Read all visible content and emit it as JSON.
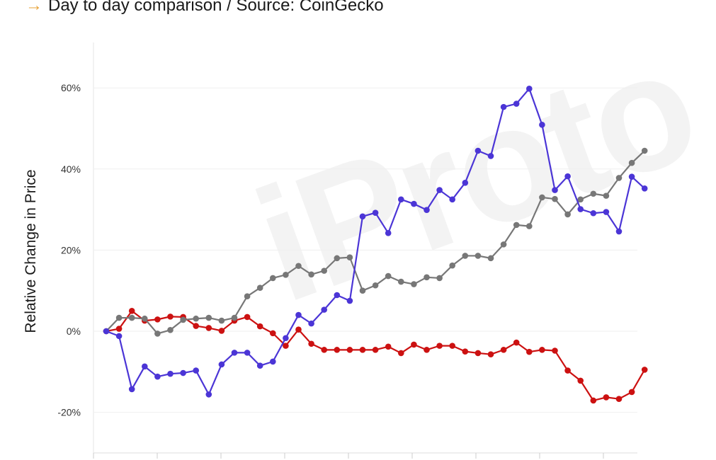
{
  "header": {
    "arrow": "→",
    "subtitle": "Day to day comparison / Source: CoinGecko"
  },
  "watermark": "iProto",
  "chart_data": {
    "type": "line",
    "title": "",
    "subtitle": "Day to day comparison / Source: CoinGecko",
    "xlabel": "",
    "ylabel": "Relative Change in Price",
    "ylim": [
      -30,
      70
    ],
    "yticks": [
      -20,
      0,
      20,
      40,
      60
    ],
    "ytick_labels": [
      "-20%",
      "0%",
      "20%",
      "40%",
      "60%"
    ],
    "grid": true,
    "legend": "none",
    "x": [
      0,
      1,
      2,
      3,
      4,
      5,
      6,
      7,
      8,
      9,
      10,
      11,
      12,
      13,
      14,
      15,
      16,
      17,
      18,
      19,
      20,
      21,
      22,
      23,
      24,
      25,
      26,
      27,
      28,
      29,
      30,
      31,
      32,
      33,
      34,
      35,
      36,
      37,
      38,
      39,
      40,
      41,
      42
    ],
    "series": [
      {
        "color": "#4b35d6",
        "values": [
          0,
          -1.2,
          -14.3,
          -8.7,
          -11.2,
          -10.5,
          -10.3,
          -9.7,
          -15.6,
          -8.2,
          -5.3,
          -5.3,
          -8.5,
          -7.5,
          -1.7,
          4,
          1.9,
          5.3,
          8.9,
          7.5,
          28.3,
          29.2,
          24.2,
          32.5,
          31.4,
          29.9,
          34.8,
          32.5,
          36.6,
          44.5,
          43.2,
          55.3,
          56.1,
          59.8,
          50.9,
          34.8,
          38.2,
          30.1,
          29.1,
          29.4,
          24.6,
          38.1,
          35.2
        ]
      },
      {
        "color": "#777777",
        "values": [
          0,
          3.3,
          3.3,
          3.1,
          -0.6,
          0.3,
          2.8,
          3.1,
          3.3,
          2.6,
          3.3,
          8.6,
          10.7,
          13.1,
          13.9,
          16.1,
          14,
          14.9,
          18,
          18.2,
          10,
          11.3,
          13.6,
          12.2,
          11.6,
          13.3,
          13.1,
          16.2,
          18.6,
          18.6,
          18,
          21.4,
          26.2,
          25.9,
          33,
          32.6,
          28.8,
          32.5,
          33.9,
          33.4,
          37.8,
          41.5,
          44.5
        ]
      },
      {
        "color": "#cc1111",
        "values": [
          0,
          0.6,
          5,
          2.6,
          2.9,
          3.6,
          3.5,
          1.3,
          0.8,
          0.1,
          2.6,
          3.5,
          1.2,
          -0.5,
          -3.6,
          0.4,
          -3.1,
          -4.6,
          -4.6,
          -4.6,
          -4.6,
          -4.6,
          -3.8,
          -5.4,
          -3.3,
          -4.6,
          -3.6,
          -3.6,
          -5,
          -5.4,
          -5.7,
          -4.6,
          -2.8,
          -5.1,
          -4.6,
          -4.8,
          -9.7,
          -12.2,
          -17.1,
          -16.3,
          -16.7,
          -15,
          -9.5
        ]
      }
    ]
  }
}
